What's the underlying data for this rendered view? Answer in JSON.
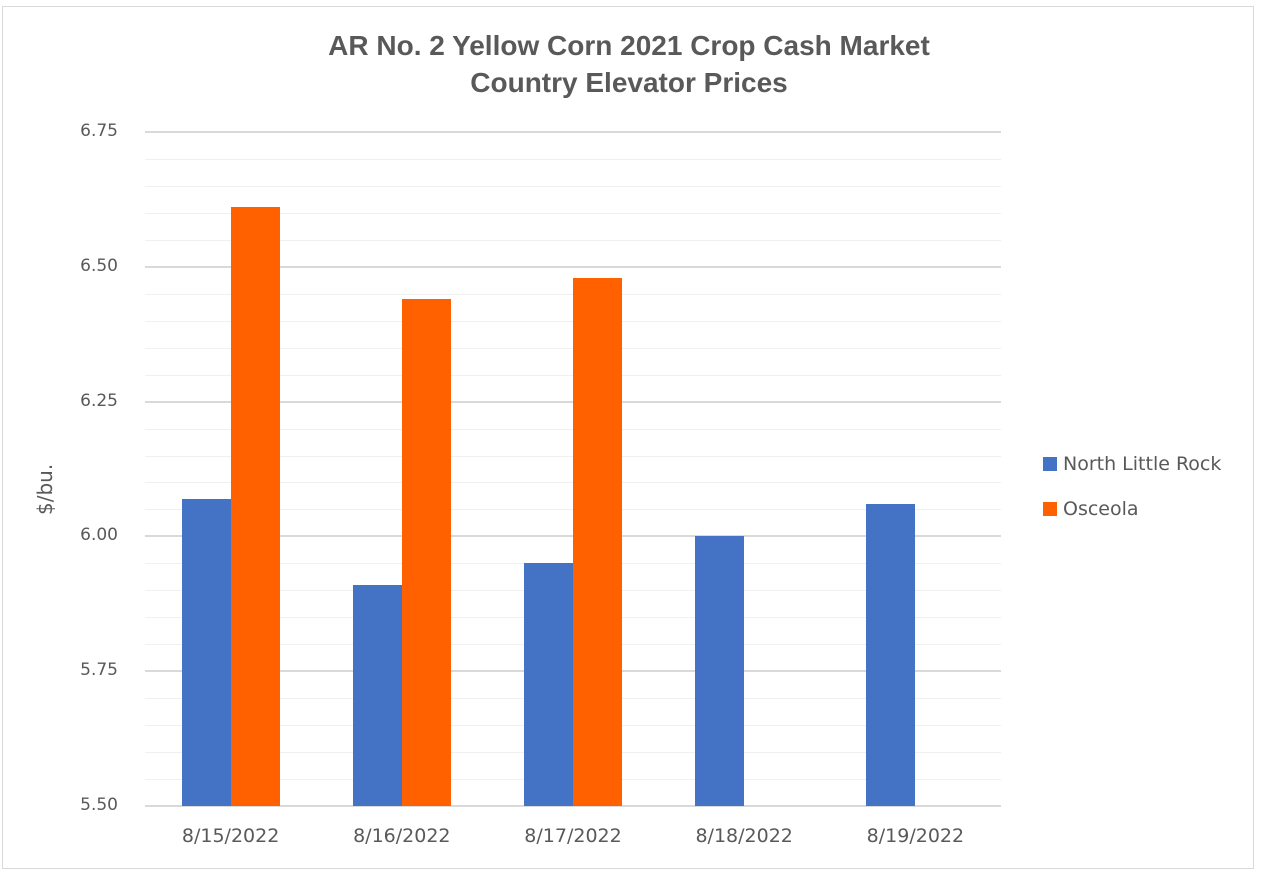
{
  "chart_data": {
    "type": "bar",
    "title": "AR No. 2 Yellow Corn 2021 Crop Cash Market Country Elevator Prices",
    "title_lines": [
      "AR No. 2 Yellow Corn 2021 Crop Cash Market",
      "Country Elevator Prices"
    ],
    "xlabel": "",
    "ylabel": "$/bu.",
    "ylim": [
      5.5,
      6.75
    ],
    "yticks": [
      "6.75",
      "6.50",
      "6.25",
      "6.00",
      "5.75",
      "5.50"
    ],
    "grid": true,
    "legend_position": "right",
    "categories": [
      "8/15/2022",
      "8/16/2022",
      "8/17/2022",
      "8/18/2022",
      "8/19/2022"
    ],
    "series": [
      {
        "name": "North Little Rock",
        "color": "#4472c4",
        "values": [
          6.07,
          5.91,
          5.95,
          6.0,
          6.06
        ]
      },
      {
        "name": "Osceola",
        "color": "#ff6000",
        "values": [
          6.61,
          6.44,
          6.48,
          null,
          null
        ]
      }
    ]
  }
}
